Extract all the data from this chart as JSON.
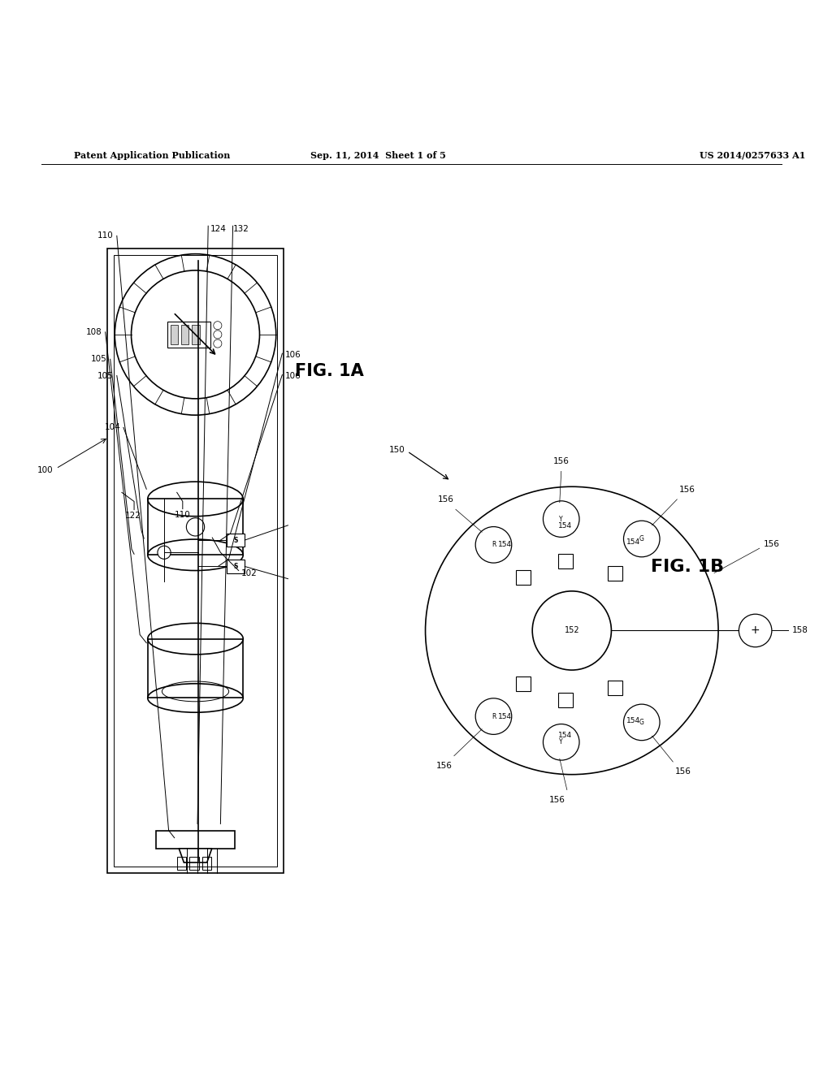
{
  "bg_color": "#ffffff",
  "header_left": "Patent Application Publication",
  "header_mid": "Sep. 11, 2014  Sheet 1 of 5",
  "header_right": "US 2014/0257633 A1",
  "fig1a_label": "FIG. 1A",
  "fig1b_label": "FIG. 1B"
}
